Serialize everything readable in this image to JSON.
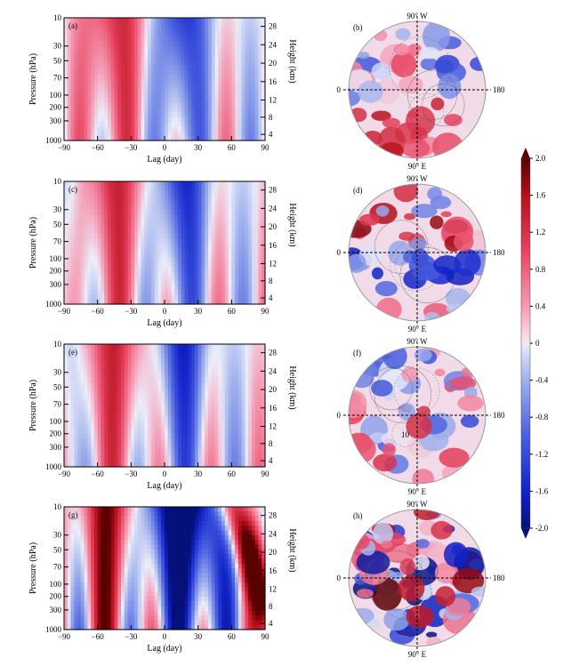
{
  "panels": [
    {
      "label": "(a)",
      "xlabel": "Lag (day)",
      "ylabel": "Pressure (hPa)",
      "y2label": "Height (km)"
    },
    {
      "label": "(c)",
      "xlabel": "Lag (day)",
      "ylabel": "Pressure (hPa)",
      "y2label": "Height (km)"
    },
    {
      "label": "(e)",
      "xlabel": "Lag (day)",
      "ylabel": "Pressure (hPa)",
      "y2label": "Height (km)"
    },
    {
      "label": "(g)",
      "xlabel": "Lag (day)",
      "ylabel": "Pressure (hPa)",
      "y2label": "Height (km)"
    }
  ],
  "maps": [
    {
      "label": "(b)",
      "top": "90° W",
      "bottom": "90° E",
      "left": "0",
      "right": "180"
    },
    {
      "label": "(d)",
      "top": "90° W",
      "bottom": "90° E",
      "left": "0",
      "right": "180"
    },
    {
      "label": "(f)",
      "top": "90° W",
      "bottom": "90° E",
      "left": "0",
      "right": "180",
      "annotation": "10"
    },
    {
      "label": "(h)",
      "top": "90° W",
      "bottom": "90° E",
      "left": "0",
      "right": "180"
    }
  ],
  "chart_data": {
    "type": "heatmap",
    "x": [
      -90,
      -60,
      -30,
      0,
      30,
      60,
      90
    ],
    "xlabel": "Lag (day)",
    "xlim": [
      -90,
      90
    ],
    "pressure_ticks": [
      "10",
      "30",
      "50",
      "70",
      "100",
      "200",
      "300",
      "1000"
    ],
    "height_ticks": [
      "28",
      "24",
      "20",
      "16",
      "12",
      "8",
      "4"
    ],
    "ylabel": "Pressure (hPa)",
    "y2label": "Height (km)",
    "colorbar": {
      "ticks": [
        "2.0",
        "1.6",
        "1.2",
        "0.8",
        "0.4",
        "0",
        "-0.4",
        "-0.8",
        "-1.2",
        "-1.6",
        "-2.0"
      ],
      "vmin": -2.0,
      "vmax": 2.0
    }
  }
}
